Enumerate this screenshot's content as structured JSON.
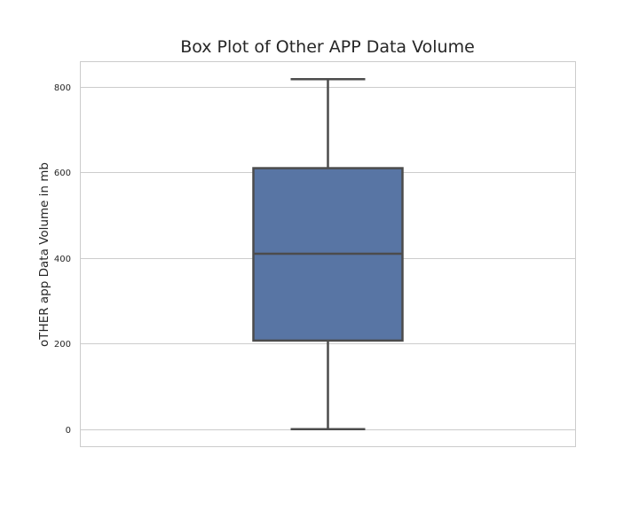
{
  "chart_data": {
    "type": "box",
    "title": "Box Plot of Other APP Data Volume",
    "xlabel": "",
    "ylabel": "oTHER app Data Volume in mb",
    "ylim": [
      -40,
      860
    ],
    "yticks": [
      0,
      200,
      400,
      600,
      800
    ],
    "grid": true,
    "box": {
      "min": 0,
      "q1": 207,
      "median": 410,
      "q3": 610,
      "max": 818
    },
    "colors": {
      "box_fill": "#5875a4",
      "box_edge": "#4c4c4c",
      "grid": "#cccccc",
      "frame": "#cccccc"
    }
  }
}
